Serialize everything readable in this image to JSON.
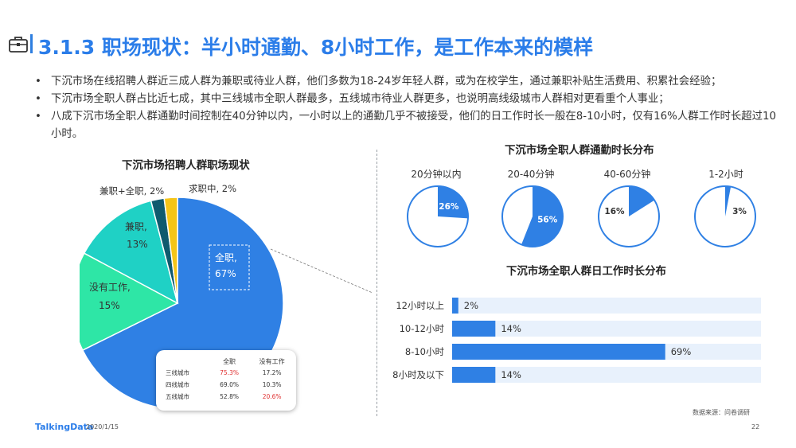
{
  "title": "3.1.3 职场现状：半小时通勤、8小时工作，是工作本来的模样",
  "bullets": [
    "下沉市场在线招聘人群近三成人群为兼职或待业人群，他们多数为18-24岁年轻人群，或为在校学生，通过兼职补贴生活费用、积累社会经验；",
    "下沉市场全职人群占比近七成，其中三线城市全职人群最多，五线城市待业人群更多，也说明高线级城市人群相对更看重个人事业；",
    "八成下沉市场全职人群通勤时间控制在40分钟以内，一小时以上的通勤几乎不被接受，他们的日工作时长一般在8-10小时，仅有16%人群工作时长超过10小时。"
  ],
  "colors": {
    "accent": "#2b7de9",
    "blue": "#2f80e4",
    "teal": "#1fd1c5",
    "green": "#2ee6a6",
    "dark_teal": "#0f5a6e",
    "yellow": "#f5c518",
    "bar_bg": "#e8f1fc",
    "red": "#e03030"
  },
  "chart_data": [
    {
      "type": "pie",
      "title": "下沉市场招聘人群职场现状",
      "slices": [
        {
          "label_line1": "全职,",
          "label_line2": "67%",
          "value": 67,
          "color": "#2f80e4"
        },
        {
          "label_line1": "没有工作,",
          "label_line2": "15%",
          "value": 15,
          "color": "#2ee6a6"
        },
        {
          "label_line1": "兼职,",
          "label_line2": "13%",
          "value": 13,
          "color": "#1fd1c5"
        },
        {
          "label": "兼职+全职, 2%",
          "value": 2,
          "color": "#0f5a6e"
        },
        {
          "label": "求职中, 2%",
          "value": 2,
          "color": "#f5c518"
        }
      ]
    },
    {
      "type": "pie",
      "title": "下沉市场全职人群通勤时长分布",
      "subcharts": [
        {
          "title": "20分钟以内",
          "value": 26,
          "label": "26%"
        },
        {
          "title": "20-40分钟",
          "value": 56,
          "label": "56%"
        },
        {
          "title": "40-60分钟",
          "value": 16,
          "label": "16%"
        },
        {
          "title": "1-2小时",
          "value": 3,
          "label": "3%"
        }
      ]
    },
    {
      "type": "bar",
      "title": "下沉市场全职人群日工作时长分布",
      "categories": [
        "12小时以上",
        "10-12小时",
        "8-10小时",
        "8小时及以下"
      ],
      "values": [
        2,
        14,
        69,
        14
      ],
      "labels": [
        "2%",
        "14%",
        "69%",
        "14%"
      ],
      "xlim": [
        0,
        100
      ]
    },
    {
      "type": "table",
      "headers": [
        "",
        "全职",
        "没有工作"
      ],
      "rows": [
        {
          "city": "三线城市",
          "fulltime": "75.3%",
          "jobless": "17.2%",
          "highlight": "fulltime"
        },
        {
          "city": "四线城市",
          "fulltime": "69.0%",
          "jobless": "10.3%",
          "highlight": ""
        },
        {
          "city": "五线城市",
          "fulltime": "52.8%",
          "jobless": "20.6%",
          "highlight": "jobless"
        }
      ]
    }
  ],
  "footer": {
    "logo": "TalkingData",
    "date": "2020/1/15",
    "source": "数据来源：问卷调研",
    "page": "22"
  }
}
